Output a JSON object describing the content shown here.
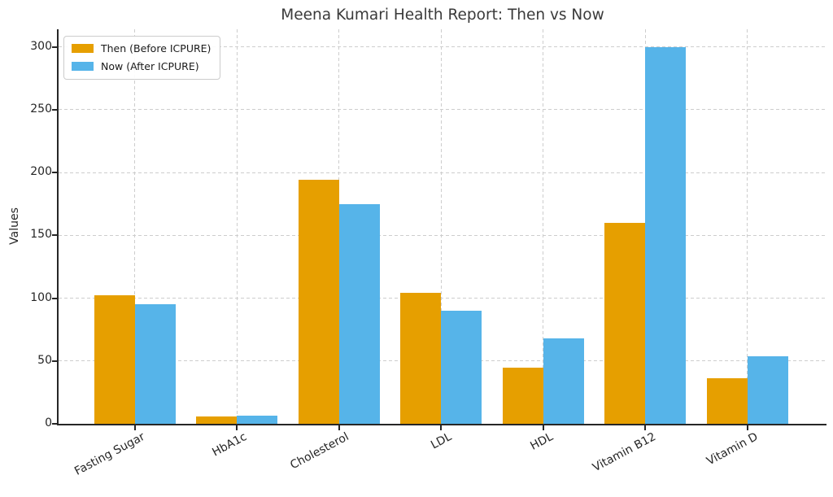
{
  "chart_data": {
    "type": "bar",
    "title": "Meena Kumari Health Report: Then vs Now",
    "xlabel": "",
    "ylabel": "Values",
    "categories": [
      "Fasting Sugar",
      "HbA1c",
      "Cholesterol",
      "LDL",
      "HDL",
      "Vitamin B12",
      "Vitamin D"
    ],
    "series": [
      {
        "name": "Then (Before ICPURE)",
        "color": "#E69F00",
        "values": [
          102,
          5.8,
          194,
          104,
          45,
          160,
          36
        ]
      },
      {
        "name": "Now (After ICPURE)",
        "color": "#56B4E9",
        "values": [
          95,
          6.4,
          175,
          90,
          68,
          300,
          54
        ]
      }
    ],
    "ylim": [
      0,
      314
    ],
    "yticks": [
      0,
      50,
      100,
      150,
      200,
      250,
      300
    ],
    "grid": true,
    "grid_style": "dashed",
    "grid_color": "#cdcdcd",
    "legend_position": "upper-left",
    "axis_color": "#262626",
    "title_color": "#3a3a3a",
    "background_color": "#ffffff"
  }
}
